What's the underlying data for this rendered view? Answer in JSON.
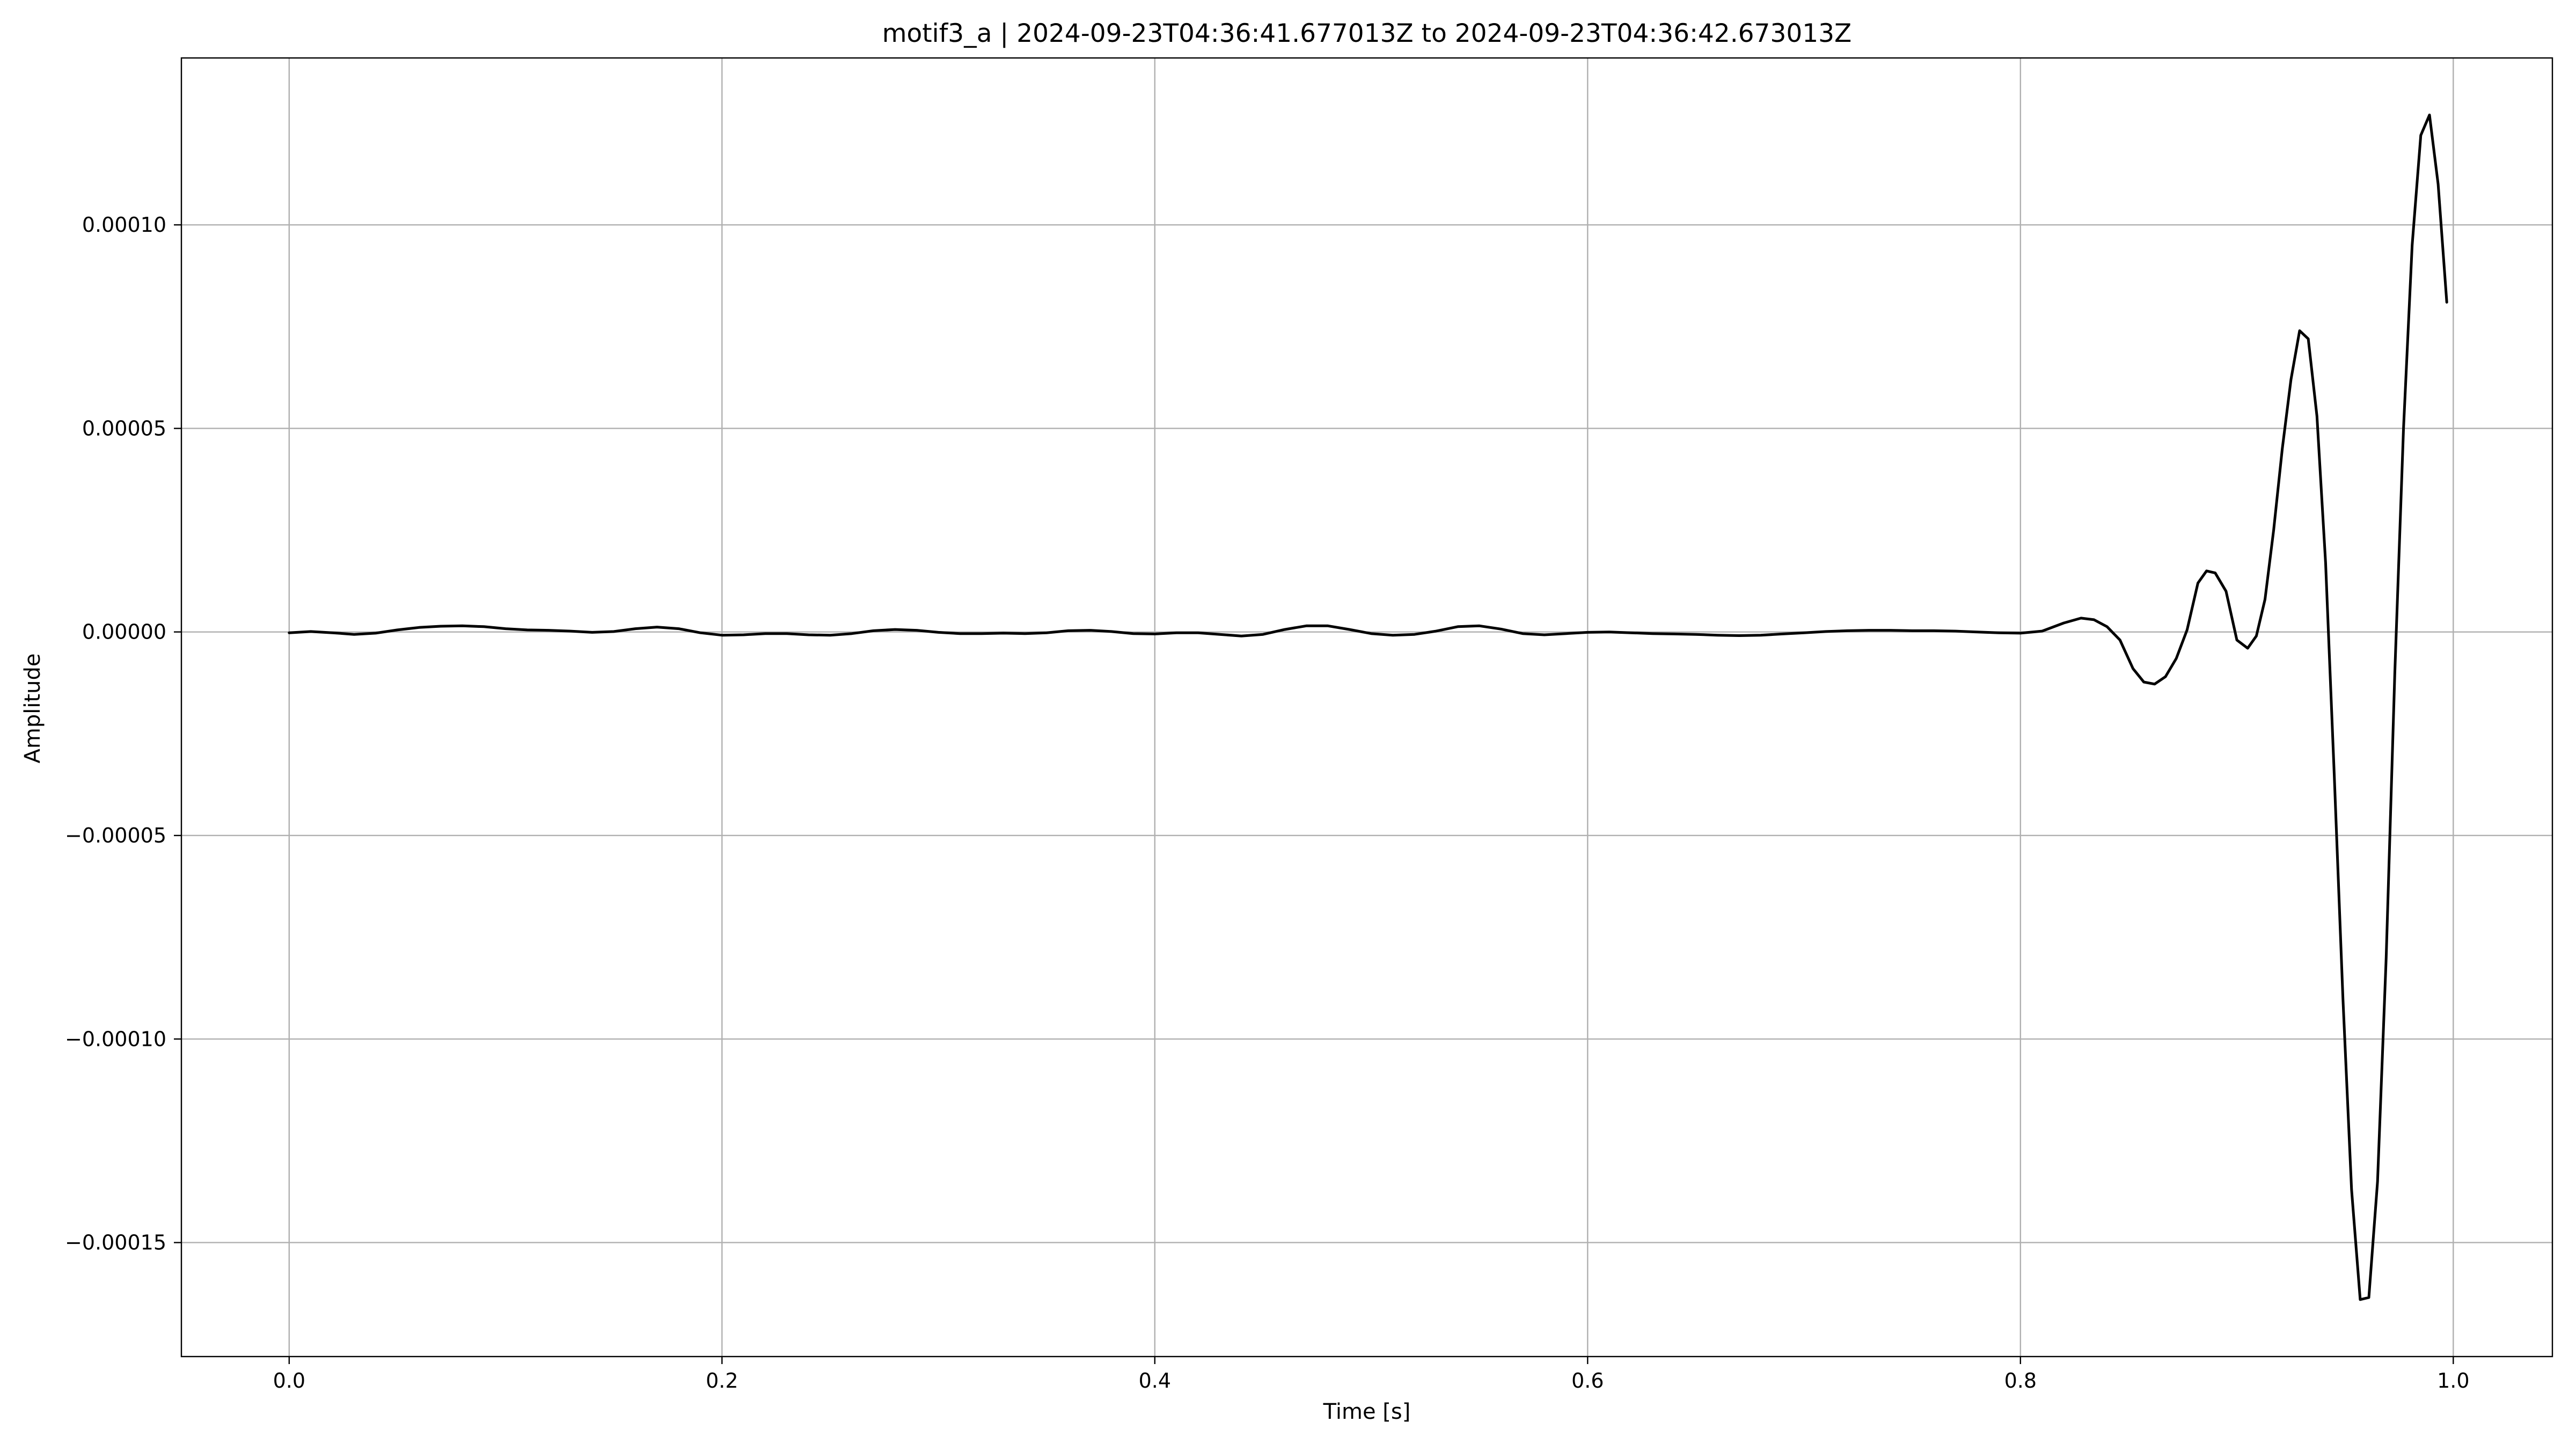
{
  "chart_data": {
    "type": "line",
    "title": "motif3_a | 2024-09-23T04:36:41.677013Z to 2024-09-23T04:36:42.673013Z",
    "xlabel": "Time [s]",
    "ylabel": "Amplitude",
    "xlim": [
      -0.0498,
      1.0458
    ],
    "ylim": [
      -0.000178,
      0.000141
    ],
    "grid": true,
    "x_ticks": [
      {
        "value": 0.0,
        "label": "0.0"
      },
      {
        "value": 0.2,
        "label": "0.2"
      },
      {
        "value": 0.4,
        "label": "0.4"
      },
      {
        "value": 0.6,
        "label": "0.6"
      },
      {
        "value": 0.8,
        "label": "0.8"
      },
      {
        "value": 1.0,
        "label": "1.0"
      }
    ],
    "y_ticks": [
      {
        "value": 0.0001,
        "label": "0.00010"
      },
      {
        "value": 5e-05,
        "label": "0.00005"
      },
      {
        "value": 0.0,
        "label": "0.00000"
      },
      {
        "value": -5e-05,
        "label": "−0.00005"
      },
      {
        "value": -0.0001,
        "label": "−0.00010"
      },
      {
        "value": -0.00015,
        "label": "−0.00015"
      }
    ],
    "series": [
      {
        "color": "#000000",
        "points": [
          [
            0.0,
            -2e-07
          ],
          [
            0.01,
            1e-07
          ],
          [
            0.02,
            -2e-07
          ],
          [
            0.03,
            -6e-07
          ],
          [
            0.04,
            -3e-07
          ],
          [
            0.05,
            5e-07
          ],
          [
            0.06,
            1.1e-06
          ],
          [
            0.07,
            1.4e-06
          ],
          [
            0.08,
            1.5e-06
          ],
          [
            0.09,
            1.3e-06
          ],
          [
            0.1,
            8e-07
          ],
          [
            0.11,
            5e-07
          ],
          [
            0.12,
            4e-07
          ],
          [
            0.13,
            2e-07
          ],
          [
            0.14,
            -1e-07
          ],
          [
            0.15,
            1e-07
          ],
          [
            0.16,
            8e-07
          ],
          [
            0.17,
            1.2e-06
          ],
          [
            0.18,
            8e-07
          ],
          [
            0.19,
            -2e-07
          ],
          [
            0.2,
            -8e-07
          ],
          [
            0.21,
            -7e-07
          ],
          [
            0.22,
            -4e-07
          ],
          [
            0.23,
            -4e-07
          ],
          [
            0.24,
            -7e-07
          ],
          [
            0.25,
            -8e-07
          ],
          [
            0.26,
            -4e-07
          ],
          [
            0.27,
            3e-07
          ],
          [
            0.28,
            6e-07
          ],
          [
            0.29,
            4e-07
          ],
          [
            0.3,
            -1e-07
          ],
          [
            0.31,
            -4e-07
          ],
          [
            0.32,
            -4e-07
          ],
          [
            0.33,
            -3e-07
          ],
          [
            0.34,
            -4e-07
          ],
          [
            0.35,
            -2e-07
          ],
          [
            0.36,
            3e-07
          ],
          [
            0.37,
            4e-07
          ],
          [
            0.38,
            1e-07
          ],
          [
            0.39,
            -4e-07
          ],
          [
            0.4,
            -5e-07
          ],
          [
            0.41,
            -2e-07
          ],
          [
            0.42,
            -2e-07
          ],
          [
            0.43,
            -6e-07
          ],
          [
            0.44,
            -1e-06
          ],
          [
            0.45,
            -6e-07
          ],
          [
            0.46,
            6e-07
          ],
          [
            0.47,
            1.5e-06
          ],
          [
            0.48,
            1.5e-06
          ],
          [
            0.49,
            6e-07
          ],
          [
            0.5,
            -4e-07
          ],
          [
            0.51,
            -8e-07
          ],
          [
            0.52,
            -6e-07
          ],
          [
            0.53,
            2e-07
          ],
          [
            0.54,
            1.3e-06
          ],
          [
            0.55,
            1.5e-06
          ],
          [
            0.56,
            7e-07
          ],
          [
            0.57,
            -4e-07
          ],
          [
            0.58,
            -7e-07
          ],
          [
            0.59,
            -4e-07
          ],
          [
            0.6,
            -1e-07
          ],
          [
            0.61,
            0.0
          ],
          [
            0.62,
            -2e-07
          ],
          [
            0.63,
            -4e-07
          ],
          [
            0.64,
            -5e-07
          ],
          [
            0.65,
            -6e-07
          ],
          [
            0.66,
            -8e-07
          ],
          [
            0.67,
            -9e-07
          ],
          [
            0.68,
            -8e-07
          ],
          [
            0.69,
            -5e-07
          ],
          [
            0.7,
            -2e-07
          ],
          [
            0.71,
            1e-07
          ],
          [
            0.72,
            3e-07
          ],
          [
            0.73,
            4e-07
          ],
          [
            0.74,
            4e-07
          ],
          [
            0.75,
            3e-07
          ],
          [
            0.76,
            3e-07
          ],
          [
            0.77,
            2e-07
          ],
          [
            0.78,
            0.0
          ],
          [
            0.79,
            -2e-07
          ],
          [
            0.8,
            -3e-07
          ],
          [
            0.81,
            2e-07
          ],
          [
            0.82,
            2.2e-06
          ],
          [
            0.828,
            3.4e-06
          ],
          [
            0.834,
            3e-06
          ],
          [
            0.84,
            1.3e-06
          ],
          [
            0.846,
            -2e-06
          ],
          [
            0.852,
            -9e-06
          ],
          [
            0.857,
            -1.23e-05
          ],
          [
            0.862,
            -1.28e-05
          ],
          [
            0.867,
            -1.1e-05
          ],
          [
            0.872,
            -6.5e-06
          ],
          [
            0.877,
            5e-07
          ],
          [
            0.882,
            1.2e-05
          ],
          [
            0.886,
            1.5e-05
          ],
          [
            0.89,
            1.45e-05
          ],
          [
            0.895,
            1e-05
          ],
          [
            0.9,
            -2e-06
          ],
          [
            0.905,
            -4e-06
          ],
          [
            0.909,
            -1e-06
          ],
          [
            0.913,
            8e-06
          ],
          [
            0.917,
            2.5e-05
          ],
          [
            0.921,
            4.5e-05
          ],
          [
            0.925,
            6.2e-05
          ],
          [
            0.929,
            7.4e-05
          ],
          [
            0.933,
            7.2e-05
          ],
          [
            0.937,
            5.3e-05
          ],
          [
            0.941,
            1.7e-05
          ],
          [
            0.945,
            -3.5e-05
          ],
          [
            0.949,
            -9e-05
          ],
          [
            0.953,
            -0.000137
          ],
          [
            0.957,
            -0.000164
          ],
          [
            0.961,
            -0.0001635
          ],
          [
            0.965,
            -0.000135
          ],
          [
            0.969,
            -8e-05
          ],
          [
            0.973,
            -1e-05
          ],
          [
            0.977,
            5e-05
          ],
          [
            0.981,
            9.5e-05
          ],
          [
            0.985,
            0.000122
          ],
          [
            0.989,
            0.000127
          ],
          [
            0.993,
            0.00011
          ],
          [
            0.997,
            8.1e-05
          ]
        ]
      }
    ]
  }
}
